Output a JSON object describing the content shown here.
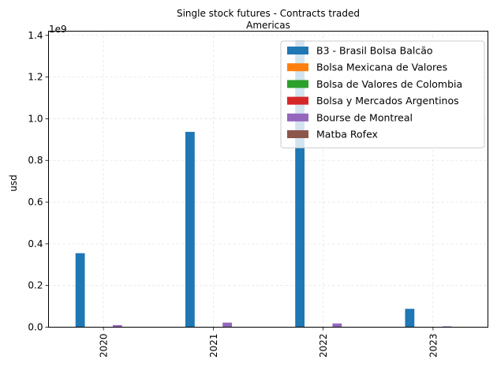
{
  "chart_data": {
    "type": "bar",
    "title": "Single stock futures - Contracts traded",
    "subtitle": "Americas",
    "xlabel": "",
    "ylabel": "usd",
    "y_multiplier_label": "1e9",
    "categories": [
      "2020",
      "2021",
      "2022",
      "2023"
    ],
    "ylim": [
      0,
      1.42
    ],
    "yticks": [
      "0.0",
      "0.2",
      "0.4",
      "0.6",
      "0.8",
      "1.0",
      "1.2",
      "1.4"
    ],
    "yticks_values": [
      0,
      0.2,
      0.4,
      0.6,
      0.8,
      1.0,
      1.2,
      1.4
    ],
    "grid": true,
    "legend_position": "top-right",
    "series": [
      {
        "name": "B3 - Brasil Bolsa Balcão",
        "color": "#1f77b4",
        "values": [
          0.355,
          0.937,
          1.375,
          0.088
        ]
      },
      {
        "name": "Bolsa Mexicana de Valores",
        "color": "#ff7f0e",
        "values": [
          0,
          0,
          0,
          0
        ]
      },
      {
        "name": "Bolsa de Valores de Colombia",
        "color": "#2ca02c",
        "values": [
          0,
          0,
          0,
          0
        ]
      },
      {
        "name": "Bolsa y Mercados Argentinos",
        "color": "#d62728",
        "values": [
          0,
          0,
          0,
          0
        ]
      },
      {
        "name": "Bourse de Montreal",
        "color": "#9467bd",
        "values": [
          0.01,
          0.022,
          0.018,
          0.004
        ]
      },
      {
        "name": "Matba Rofex",
        "color": "#8c564b",
        "values": [
          0,
          0,
          0,
          0
        ]
      }
    ]
  }
}
